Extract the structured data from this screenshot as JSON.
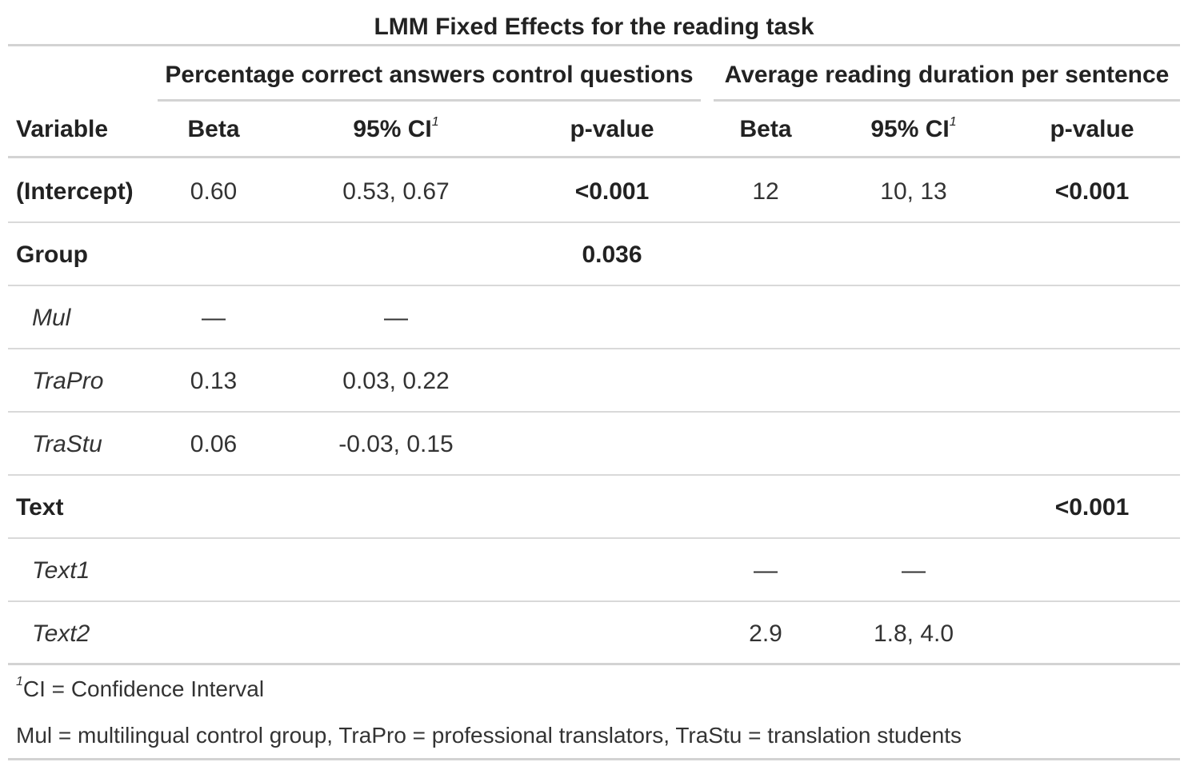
{
  "title": "LMM Fixed Effects for the reading task",
  "spanners": {
    "left": "Percentage correct answers control questions",
    "right": "Average reading duration per sentence"
  },
  "columns": {
    "variable": "Variable",
    "beta": "Beta",
    "ci": "95% CI",
    "ci_footnote_mark": "1",
    "p": "p-value"
  },
  "rows": [
    {
      "label": "(Intercept)",
      "style": "bold",
      "b1": "0.60",
      "ci1": "0.53, 0.67",
      "p1": "<0.001",
      "b2": "12",
      "ci2": "10, 13",
      "p2": "<0.001"
    },
    {
      "label": "Group",
      "style": "bold",
      "b1": "",
      "ci1": "",
      "p1": "0.036",
      "b2": "",
      "ci2": "",
      "p2": ""
    },
    {
      "label": "Mul",
      "style": "italic",
      "b1": "—",
      "ci1": "—",
      "p1": "",
      "b2": "",
      "ci2": "",
      "p2": ""
    },
    {
      "label": "TraPro",
      "style": "italic",
      "b1": "0.13",
      "ci1": "0.03, 0.22",
      "p1": "",
      "b2": "",
      "ci2": "",
      "p2": ""
    },
    {
      "label": "TraStu",
      "style": "italic",
      "b1": "0.06",
      "ci1": "-0.03, 0.15",
      "p1": "",
      "b2": "",
      "ci2": "",
      "p2": ""
    },
    {
      "label": "Text",
      "style": "bold",
      "b1": "",
      "ci1": "",
      "p1": "",
      "b2": "",
      "ci2": "",
      "p2": "<0.001"
    },
    {
      "label": "Text1",
      "style": "italic",
      "b1": "",
      "ci1": "",
      "p1": "",
      "b2": "—",
      "ci2": "—",
      "p2": ""
    },
    {
      "label": "Text2",
      "style": "italic",
      "b1": "",
      "ci1": "",
      "p1": "",
      "b2": "2.9",
      "ci2": "1.8, 4.0",
      "p2": ""
    }
  ],
  "footnotes": {
    "ci_mark": "1",
    "ci_text": "CI = Confidence Interval",
    "abbreviations": "Mul = multilingual control group, TraPro = professional translators, TraStu = translation students"
  }
}
